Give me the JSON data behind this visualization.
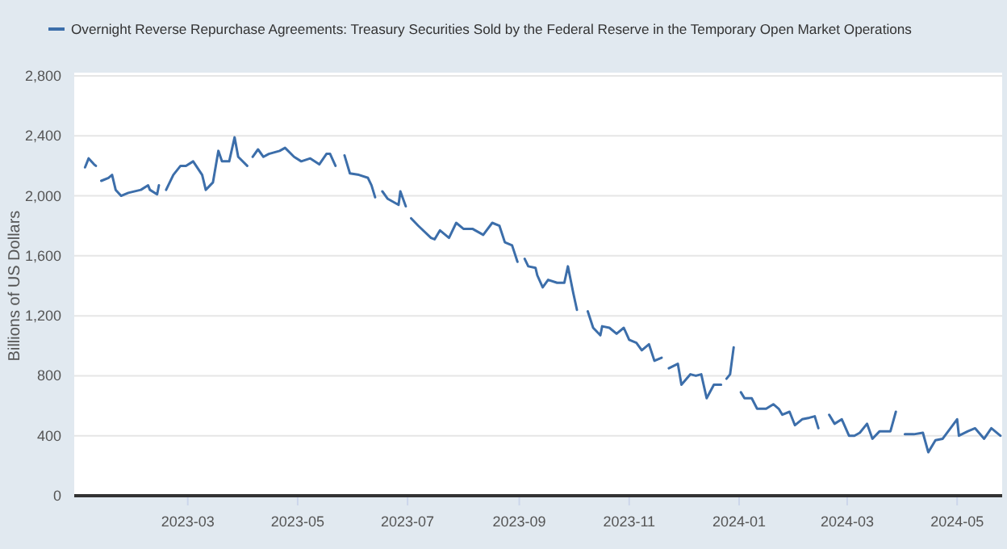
{
  "chart_data": {
    "type": "line",
    "ylabel": "Billions of US Dollars",
    "legend": "top",
    "grid": "y",
    "xlim": [
      "2022-12-28",
      "2024-05-26"
    ],
    "xticks": [
      {
        "value": "2023-03-01",
        "label": "2023-03"
      },
      {
        "value": "2023-05-01",
        "label": "2023-05"
      },
      {
        "value": "2023-07-01",
        "label": "2023-07"
      },
      {
        "value": "2023-09-01",
        "label": "2023-09"
      },
      {
        "value": "2023-11-01",
        "label": "2023-11"
      },
      {
        "value": "2024-01-01",
        "label": "2024-01"
      },
      {
        "value": "2024-03-01",
        "label": "2024-03"
      },
      {
        "value": "2024-05-01",
        "label": "2024-05"
      }
    ],
    "ylim": [
      0,
      2800
    ],
    "yticks": [
      0,
      400,
      800,
      {
        "value": 1200,
        "label": "1,200"
      },
      {
        "value": 1600,
        "label": "1,600"
      },
      {
        "value": 2000,
        "label": "2,000"
      },
      {
        "value": 2400,
        "label": "2,400"
      },
      {
        "value": 2800,
        "label": "2,800"
      }
    ],
    "series": [
      {
        "name": "Overnight Reverse Repurchase Agreements: Treasury Securities Sold by the Federal Reserve in the Temporary Open Market Operations",
        "color": "#3c6eaa",
        "x": [
          "2023-01-03",
          "2023-01-05",
          "2023-01-08",
          "2023-01-09",
          "2023-01-10",
          "2023-01-12",
          "2023-01-16",
          "2023-01-18",
          "2023-01-20",
          "2023-01-23",
          "2023-01-27",
          "2023-02-03",
          "2023-02-07",
          "2023-02-08",
          "2023-02-12",
          "2023-02-13",
          "2023-02-15",
          "2023-02-17",
          "2023-02-21",
          "2023-02-25",
          "2023-02-28",
          "2023-03-04",
          "2023-03-09",
          "2023-03-11",
          "2023-03-15",
          "2023-03-18",
          "2023-03-20",
          "2023-03-24",
          "2023-03-27",
          "2023-03-29",
          "2023-04-03",
          "2023-04-05",
          "2023-04-06",
          "2023-04-09",
          "2023-04-12",
          "2023-04-15",
          "2023-04-21",
          "2023-04-24",
          "2023-04-29",
          "2023-05-03",
          "2023-05-08",
          "2023-05-13",
          "2023-05-17",
          "2023-05-19",
          "2023-05-22",
          "2023-05-25",
          "2023-05-27",
          "2023-05-30",
          "2023-06-04",
          "2023-06-09",
          "2023-06-11",
          "2023-06-13",
          "2023-06-15",
          "2023-06-17",
          "2023-06-20",
          "2023-06-26",
          "2023-06-27",
          "2023-06-30",
          "2023-07-02",
          "2023-07-03",
          "2023-07-07",
          "2023-07-14",
          "2023-07-16",
          "2023-07-19",
          "2023-07-24",
          "2023-07-28",
          "2023-08-01",
          "2023-08-06",
          "2023-08-12",
          "2023-08-17",
          "2023-08-21",
          "2023-08-24",
          "2023-08-28",
          "2023-08-31",
          "2023-09-02",
          "2023-09-04",
          "2023-09-06",
          "2023-09-10",
          "2023-09-11",
          "2023-09-14",
          "2023-09-17",
          "2023-09-22",
          "2023-09-26",
          "2023-09-28",
          "2023-10-01",
          "2023-10-03",
          "2023-10-06",
          "2023-10-09",
          "2023-10-12",
          "2023-10-16",
          "2023-10-17",
          "2023-10-21",
          "2023-10-25",
          "2023-10-29",
          "2023-11-01",
          "2023-11-05",
          "2023-11-08",
          "2023-11-12",
          "2023-11-15",
          "2023-11-19",
          "2023-11-21",
          "2023-11-23",
          "2023-11-28",
          "2023-11-30",
          "2023-12-05",
          "2023-12-08",
          "2023-12-11",
          "2023-12-14",
          "2023-12-18",
          "2023-12-22",
          "2023-12-24",
          "2023-12-25",
          "2023-12-27",
          "2023-12-29",
          "2023-12-31",
          "2024-01-02",
          "2024-01-04",
          "2024-01-08",
          "2024-01-11",
          "2024-01-16",
          "2024-01-20",
          "2024-01-23",
          "2024-01-25",
          "2024-01-29",
          "2024-02-01",
          "2024-02-05",
          "2024-02-09",
          "2024-02-12",
          "2024-02-14",
          "2024-02-17",
          "2024-02-20",
          "2024-02-23",
          "2024-02-27",
          "2024-03-02",
          "2024-03-05",
          "2024-03-08",
          "2024-03-12",
          "2024-03-15",
          "2024-03-19",
          "2024-03-25",
          "2024-03-28",
          "2024-03-31",
          "2024-04-02",
          "2024-04-07",
          "2024-04-12",
          "2024-04-15",
          "2024-04-19",
          "2024-04-23",
          "2024-05-01",
          "2024-05-02",
          "2024-05-07",
          "2024-05-11",
          "2024-05-16",
          "2024-05-20",
          "2024-05-25"
        ],
        "values": [
          2190,
          2250,
          2210,
          2200,
          null,
          2100,
          2120,
          2140,
          2040,
          2000,
          2020,
          2040,
          2070,
          2040,
          2010,
          2070,
          null,
          2040,
          2140,
          2200,
          2200,
          2230,
          2140,
          2040,
          2090,
          2300,
          2230,
          2230,
          2390,
          2260,
          2200,
          null,
          2260,
          2310,
          2260,
          2280,
          2300,
          2320,
          2260,
          2230,
          2250,
          2210,
          2280,
          2280,
          2200,
          null,
          2270,
          2150,
          2140,
          2120,
          2070,
          1990,
          null,
          2030,
          1980,
          1940,
          2030,
          1930,
          null,
          1850,
          1800,
          1720,
          1710,
          1770,
          1720,
          1820,
          1780,
          1780,
          1740,
          1820,
          1800,
          1690,
          1670,
          1560,
          null,
          1580,
          1530,
          1520,
          1470,
          1390,
          1440,
          1420,
          1420,
          1530,
          1350,
          1240,
          null,
          1230,
          1120,
          1070,
          1130,
          1120,
          1080,
          1120,
          1040,
          1020,
          970,
          1010,
          900,
          920,
          null,
          850,
          880,
          740,
          810,
          800,
          810,
          650,
          740,
          740,
          null,
          780,
          810,
          990,
          null,
          690,
          650,
          650,
          580,
          580,
          610,
          580,
          540,
          560,
          470,
          510,
          520,
          530,
          450,
          null,
          540,
          480,
          510,
          400,
          400,
          420,
          480,
          380,
          430,
          430,
          560,
          null,
          410,
          410,
          420,
          290,
          370,
          380,
          510,
          400,
          430,
          450,
          380,
          450,
          400
        ]
      }
    ]
  }
}
